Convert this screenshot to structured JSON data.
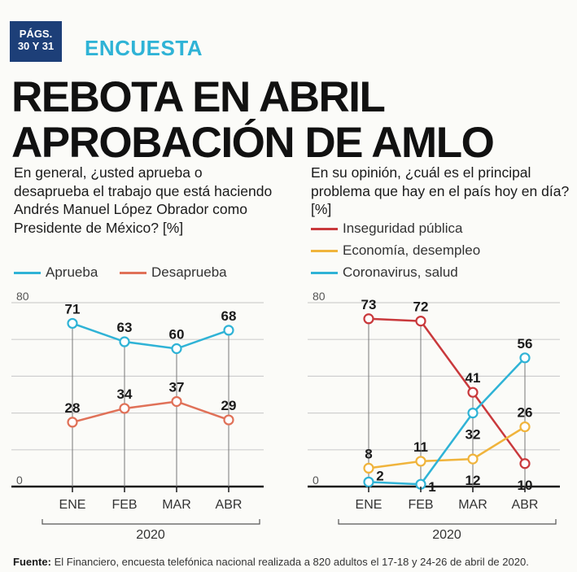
{
  "header": {
    "pages_badge": [
      "PÁGS.",
      "30 Y 31"
    ],
    "section": "ENCUESTA",
    "headline": [
      "REBOTA EN ABRIL",
      "APROBACIÓN DE AMLO"
    ]
  },
  "colors": {
    "badge": "#1d3f78",
    "section": "#2fb3d6",
    "aprueba": "#2fb3d6",
    "desaprueba": "#e07158",
    "inseguridad": "#c9393c",
    "economia": "#f0b43c",
    "coronavirus": "#2fb3d6"
  },
  "left": {
    "question": "En general, ¿usted aprueba o desaprueba el trabajo que está haciendo Andrés Manuel López Obrador como Presidente de México? [%]"
  },
  "right": {
    "question": "En su opinión, ¿cuál es el principal problema que hay en el país hoy en día? [%]"
  },
  "chart_data": [
    {
      "type": "line",
      "x": [
        "ENE",
        "FEB",
        "MAR",
        "ABR"
      ],
      "year_label": "2020",
      "ylim": [
        0,
        80
      ],
      "y_ticks": [
        "0",
        "80"
      ],
      "series": [
        {
          "name": "Aprueba",
          "color": "#2fb3d6",
          "values": [
            71,
            63,
            60,
            68
          ],
          "labels": [
            "71",
            "63",
            "60",
            "68"
          ]
        },
        {
          "name": "Desaprueba",
          "color": "#e07158",
          "values": [
            28,
            34,
            37,
            29
          ],
          "labels": [
            "28",
            "34",
            "37",
            "29"
          ]
        }
      ]
    },
    {
      "type": "line",
      "x": [
        "ENE",
        "FEB",
        "MAR",
        "ABR"
      ],
      "year_label": "2020",
      "ylim": [
        0,
        80
      ],
      "y_ticks": [
        "0",
        "80"
      ],
      "series": [
        {
          "name": "Inseguridad pública",
          "color": "#c9393c",
          "values": [
            73,
            72,
            41,
            10
          ],
          "labels": [
            "73",
            "72",
            "41",
            "10"
          ]
        },
        {
          "name": "Economía, desempleo",
          "color": "#f0b43c",
          "values": [
            8,
            11,
            12,
            26
          ],
          "labels": [
            "8",
            "11",
            "12",
            "26"
          ]
        },
        {
          "name": "Coronavirus, salud",
          "color": "#2fb3d6",
          "values": [
            2,
            1,
            32,
            56
          ],
          "labels": [
            "2",
            "1",
            "32",
            "56"
          ]
        }
      ]
    }
  ],
  "source": {
    "label": "Fuente:",
    "text": "El Financiero, encuesta telefónica nacional realizada a 820 adultos el 17-18 y 24-26 de abril de 2020."
  }
}
